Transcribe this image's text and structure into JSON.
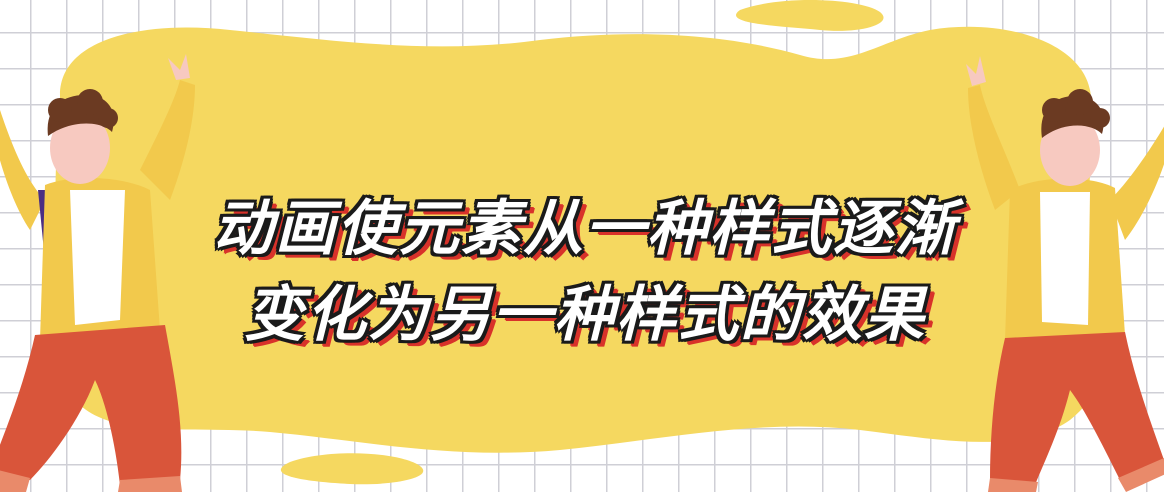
{
  "banner": {
    "headline_line1": "动画使元素从一种样式逐渐",
    "headline_line2": "变化为另一种样式的效果"
  },
  "colors": {
    "grid_line": "#cfcfd6",
    "blob_yellow": "#f5d860",
    "text_fill": "#ffffff",
    "text_outline": "#1a1a1a",
    "text_shadow": "#d8322a",
    "jacket": "#f2c94c",
    "pants": "#d9553a",
    "hair": "#6b3a22",
    "skin": "#f7c9c0"
  }
}
